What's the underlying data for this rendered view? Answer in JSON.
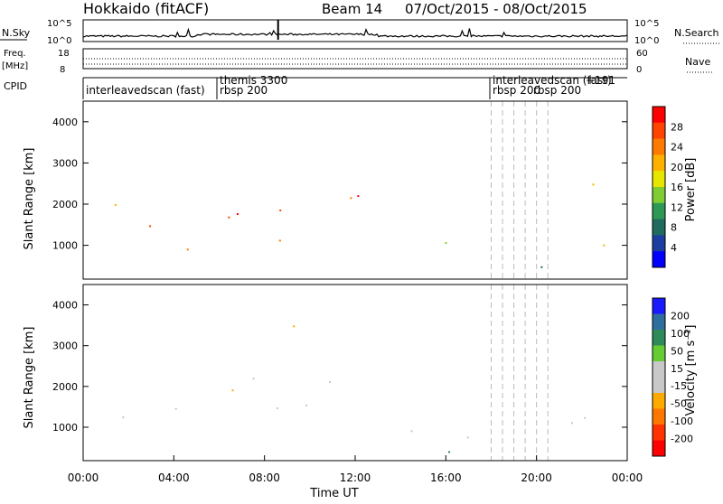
{
  "header": {
    "station": "Hokkaido (fitACF)",
    "beam": "Beam 14",
    "dates": "07/Oct/2015 - 08/Oct/2015"
  },
  "noise_panel": {
    "left_label": "N.Sky",
    "left_ticks": [
      "10^5",
      "10^0"
    ],
    "right_ticks": [
      "10^5",
      "10^0"
    ],
    "right_label": "N.Search"
  },
  "freq_panel": {
    "left_label_1": "Freq.",
    "left_label_2": "[MHz]",
    "left_ticks": [
      "18",
      "8"
    ],
    "right_ticks": [
      "60",
      "0"
    ],
    "right_label": "Nave"
  },
  "cpid": {
    "label": "CPID",
    "programs": [
      {
        "name": "interleavedscan (fast)",
        "time": 0
      },
      {
        "name": "themis 3300",
        "time": 6.0
      },
      {
        "name": "rbsp 200",
        "time": 6.0
      },
      {
        "name": "interleavedscan (fast)",
        "time": 18.0
      },
      {
        "name": "rbsp 200",
        "time": 18.0
      },
      {
        "name": "interleavedscan (fast)",
        "time": 18.5
      },
      {
        "name": "rbsp 200",
        "time": 19.0
      },
      {
        "name": "interleavedscan (fast) 191",
        "time": 20.5
      },
      {
        "name": "rbsp 200",
        "time": 20.0
      }
    ],
    "labels_visible": [
      "interleavedscan (fast)",
      "themis 3300",
      "rbsp 200",
      "interleavedscan (fast)",
      "rbsp 200",
      "rbsp 200",
      "+191"
    ]
  },
  "chart_data": [
    {
      "type": "heatmap",
      "name": "power",
      "ylabel": "Slant Range [km]",
      "yticks": [
        1000,
        2000,
        3000,
        4000
      ],
      "ylim": [
        180,
        4500
      ],
      "xlim": [
        0,
        24
      ],
      "colorbar": {
        "label": "Power [dB]",
        "ticks": [
          "28",
          "24",
          "20",
          "16",
          "12",
          "8",
          "4"
        ],
        "colors": [
          "#ff0000",
          "#ff4400",
          "#ff7a00",
          "#ffb000",
          "#e6e600",
          "#7fcc33",
          "#2e9955",
          "#1f6b5e",
          "#1a3fa0",
          "#0000ff"
        ]
      },
      "regions": [
        {
          "t0": 0.0,
          "t1": 3.5,
          "r0": 800,
          "r1": 1500,
          "level": "high"
        },
        {
          "t0": 0.3,
          "t1": 3.0,
          "r0": 1500,
          "r1": 2300,
          "level": "mid"
        },
        {
          "t0": 4.0,
          "t1": 6.0,
          "r0": 900,
          "r1": 1600,
          "level": "high"
        },
        {
          "t0": 6.0,
          "t1": 9.5,
          "r0": 1100,
          "r1": 3600,
          "level": "high"
        },
        {
          "t0": 9.5,
          "t1": 12.0,
          "r0": 1400,
          "r1": 2400,
          "level": "high"
        },
        {
          "t0": 12.0,
          "t1": 13.3,
          "r0": 2000,
          "r1": 3200,
          "level": "high"
        },
        {
          "t0": 14.0,
          "t1": 16.0,
          "r0": 600,
          "r1": 1600,
          "level": "low"
        },
        {
          "t0": 15.5,
          "t1": 16.5,
          "r0": 200,
          "r1": 900,
          "level": "high"
        },
        {
          "t0": 16.0,
          "t1": 24.0,
          "r0": 200,
          "r1": 550,
          "level": "low"
        },
        {
          "t0": 20.8,
          "t1": 23.5,
          "r0": 1000,
          "r1": 3000,
          "level": "mid"
        }
      ]
    },
    {
      "type": "heatmap",
      "name": "velocity",
      "ylabel": "Slant Range [km]",
      "yticks": [
        1000,
        2000,
        3000,
        4000
      ],
      "ylim": [
        180,
        4500
      ],
      "xlim": [
        0,
        24
      ],
      "xticks": [
        "00:00",
        "04:00",
        "08:00",
        "12:00",
        "16:00",
        "20:00",
        "00:00"
      ],
      "xlabel": "Time UT",
      "colorbar": {
        "label": "Velocity [m s⁻¹]",
        "ticks": [
          "200",
          "100",
          "50",
          "15",
          "-15",
          "-50",
          "-100",
          "-200"
        ],
        "colors": [
          "#1a1aff",
          "#2e6e9e",
          "#2e8b57",
          "#66cc33",
          "#c8c8c8",
          "#c8c8c8",
          "#ffaa00",
          "#ff7700",
          "#ff3300",
          "#ff0000"
        ]
      },
      "regions": [
        {
          "t0": 0.0,
          "t1": 6.0,
          "r0": 900,
          "r1": 1800,
          "level": "gray"
        },
        {
          "t0": 6.0,
          "t1": 9.5,
          "r0": 1100,
          "r1": 3500,
          "level": "orange"
        },
        {
          "t0": 9.5,
          "t1": 12.5,
          "r0": 1300,
          "r1": 2800,
          "level": "gray"
        },
        {
          "t0": 12.5,
          "t1": 13.3,
          "r0": 2200,
          "r1": 3300,
          "level": "gray"
        },
        {
          "t0": 14.0,
          "t1": 17.5,
          "r0": 400,
          "r1": 1500,
          "level": "gray"
        },
        {
          "t0": 16.0,
          "t1": 24.0,
          "r0": 250,
          "r1": 550,
          "level": "green"
        },
        {
          "t0": 21.0,
          "t1": 23.5,
          "r0": 1000,
          "r1": 2900,
          "level": "gray"
        }
      ]
    }
  ],
  "dashed_times": [
    18.0,
    18.5,
    19.0,
    19.5,
    20.0,
    20.5
  ]
}
